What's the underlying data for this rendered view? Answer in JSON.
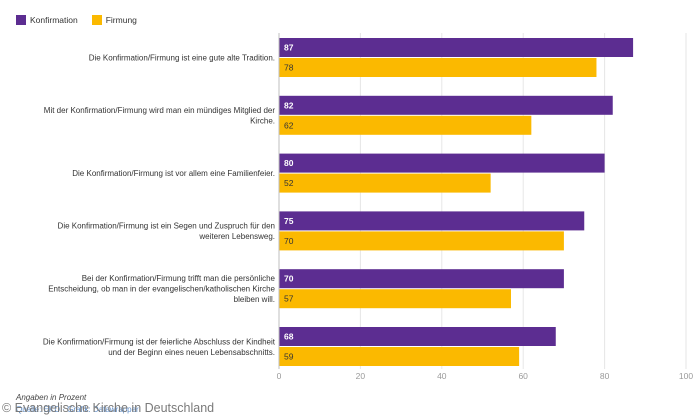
{
  "legend": {
    "items": [
      {
        "name": "Konfirmation",
        "color": "#5c2d91"
      },
      {
        "name": "Firmung",
        "color": "#fbb900"
      }
    ]
  },
  "footer": {
    "note": "Angaben in Prozent",
    "source_link": "Quelle: EKD · Grafik: Datawrapper",
    "copyright": "© Evangelische Kirche in Deutschland"
  },
  "chart_data": {
    "type": "bar",
    "orientation": "horizontal",
    "categories": [
      "Die Konfirmation/Firmung ist eine gute alte Tradition.",
      "Mit der Konfirmation/Firmung wird man ein mündiges Mitglied der Kirche.",
      "Die Konfirmation/Firmung ist vor allem eine Familienfeier.",
      "Die Konfirmation/Firmung ist ein Segen und Zuspruch für den weiteren Lebensweg.",
      "Bei der Konfirmation/Firmung trifft man die persönliche Entscheidung, ob man in der evangelischen/katholischen Kirche bleiben will.",
      "Die Konfirmation/Firmung ist der feierliche Abschluss der Kindheit und der Beginn eines neuen Lebensabschnitts."
    ],
    "category_lines": [
      [
        "Die Konfirmation/Firmung ist eine gute alte Tradition."
      ],
      [
        "Mit der Konfirmation/Firmung wird man ein mündiges Mitglied der",
        "Kirche."
      ],
      [
        "Die Konfirmation/Firmung ist vor allem eine Familienfeier."
      ],
      [
        "Die Konfirmation/Firmung ist ein Segen und Zuspruch für den",
        "weiteren Lebensweg."
      ],
      [
        "Bei der Konfirmation/Firmung trifft man die persönliche",
        "Entscheidung, ob man in der evangelischen/katholischen Kirche",
        "bleiben will."
      ],
      [
        "Die Konfirmation/Firmung ist der feierliche Abschluss der Kindheit",
        "und der Beginn eines neuen Lebensabschnitts."
      ]
    ],
    "series": [
      {
        "name": "Konfirmation",
        "color": "#5c2d91",
        "label_color": "#ffffff",
        "values": [
          87,
          82,
          80,
          75,
          70,
          68
        ]
      },
      {
        "name": "Firmung",
        "color": "#fbb900",
        "label_color": "#333333",
        "values": [
          78,
          62,
          52,
          70,
          57,
          59
        ]
      }
    ],
    "xlim": [
      0,
      100
    ],
    "xticks": [
      0,
      20,
      40,
      60,
      80,
      100
    ],
    "grid": true,
    "legend_position": "top-left",
    "xlabel": "",
    "ylabel": ""
  }
}
